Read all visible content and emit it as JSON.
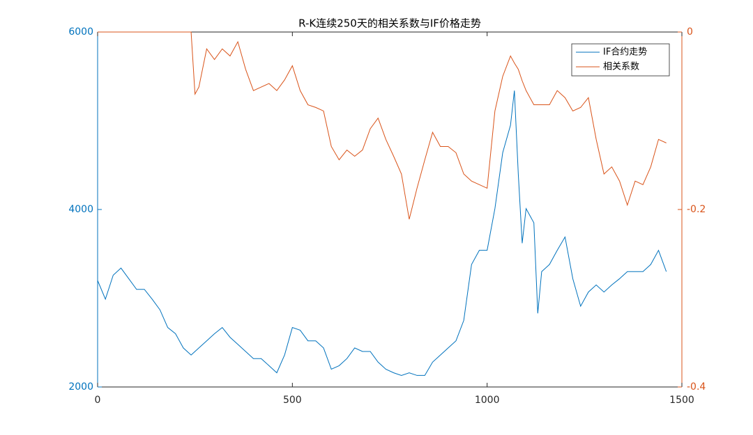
{
  "chart_data": {
    "type": "line",
    "title": "R-K连续250天的相关系数与IF价格走势",
    "x": [
      0,
      20,
      40,
      60,
      80,
      100,
      120,
      140,
      160,
      180,
      200,
      220,
      240,
      250,
      260,
      280,
      300,
      320,
      340,
      360,
      380,
      400,
      420,
      440,
      460,
      480,
      500,
      520,
      540,
      560,
      580,
      600,
      620,
      640,
      660,
      680,
      700,
      720,
      740,
      760,
      780,
      800,
      820,
      840,
      860,
      880,
      900,
      920,
      940,
      960,
      980,
      1000,
      1020,
      1040,
      1060,
      1070,
      1080,
      1090,
      1100,
      1120,
      1130,
      1140,
      1160,
      1180,
      1200,
      1220,
      1240,
      1260,
      1280,
      1300,
      1320,
      1340,
      1360,
      1380,
      1400,
      1420,
      1440,
      1460
    ],
    "series": [
      {
        "name": "IF合约走势",
        "color": "#0072BD",
        "axis": "y",
        "values": [
          3200,
          2990,
          3260,
          3340,
          3220,
          3100,
          3100,
          2990,
          2870,
          2670,
          2600,
          2440,
          2360,
          2400,
          2440,
          2520,
          2600,
          2670,
          2560,
          2480,
          2400,
          2320,
          2320,
          2240,
          2160,
          2360,
          2670,
          2640,
          2520,
          2520,
          2440,
          2200,
          2240,
          2320,
          2440,
          2400,
          2400,
          2280,
          2200,
          2160,
          2130,
          2160,
          2130,
          2130,
          2280,
          2360,
          2440,
          2520,
          2750,
          3380,
          3540,
          3540,
          4010,
          4640,
          4950,
          5340,
          4400,
          3620,
          4010,
          3850,
          2830,
          3300,
          3380,
          3540,
          3690,
          3220,
          2910,
          3070,
          3150,
          3070,
          3150,
          3220,
          3300,
          3300,
          3300,
          3380,
          3540,
          3300
        ]
      },
      {
        "name": "相关系数",
        "color": "#D95319",
        "axis": "y2",
        "values": [
          0,
          0,
          0,
          0,
          0,
          0,
          0,
          0,
          0,
          0,
          0,
          0,
          0,
          -0.07,
          -0.062,
          -0.019,
          -0.031,
          -0.019,
          -0.027,
          -0.011,
          -0.042,
          -0.066,
          -0.062,
          -0.058,
          -0.066,
          -0.054,
          -0.038,
          -0.066,
          -0.082,
          -0.085,
          -0.089,
          -0.129,
          -0.144,
          -0.133,
          -0.14,
          -0.133,
          -0.109,
          -0.097,
          -0.121,
          -0.14,
          -0.16,
          -0.211,
          -0.176,
          -0.144,
          -0.113,
          -0.129,
          -0.129,
          -0.136,
          -0.16,
          -0.168,
          -0.172,
          -0.176,
          -0.089,
          -0.05,
          -0.027,
          -0.035,
          -0.042,
          -0.055,
          -0.066,
          -0.082,
          -0.082,
          -0.082,
          -0.082,
          -0.066,
          -0.074,
          -0.089,
          -0.085,
          -0.074,
          -0.121,
          -0.16,
          -0.152,
          -0.168,
          -0.195,
          -0.168,
          -0.172,
          -0.152,
          -0.121,
          -0.125
        ]
      }
    ],
    "xlim": [
      0,
      1500
    ],
    "xticks": [
      0,
      500,
      1000,
      1500
    ],
    "ylim": [
      2000,
      6000
    ],
    "yticks": [
      2000,
      4000,
      6000
    ],
    "y2lim": [
      -0.4,
      0
    ],
    "y2ticks": [
      -0.4,
      -0.2,
      0
    ],
    "legend": "upper right"
  }
}
